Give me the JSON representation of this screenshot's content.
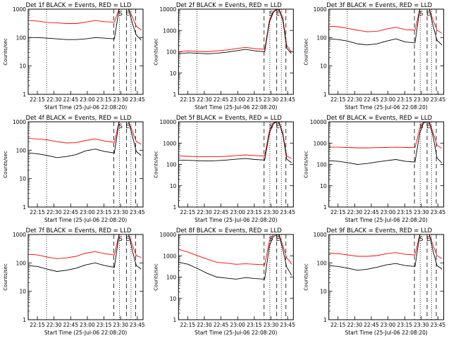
{
  "chart_data": [
    {
      "type": "line",
      "title": "Det 1f BLACK = Events, RED = LLD",
      "ylabel": "Counts/sec",
      "xlabel": "Start Time (25-Jul-06 22:08:20)",
      "x_ticks": [
        "22:15",
        "22:30",
        "22:45",
        "23:00",
        "23:15",
        "23:30",
        "23:45"
      ],
      "ylim": [
        1,
        1000
      ],
      "y_ticks": [
        "1",
        "10",
        "100",
        "1000"
      ],
      "scale": "log",
      "markers": [
        "S",
        "E"
      ],
      "series": [
        {
          "color": "#ff0000",
          "x": [
            0,
            10,
            20,
            30,
            40,
            50,
            60,
            70,
            80,
            90,
            95,
            99,
            103,
            105,
            109,
            113,
            117,
            118
          ],
          "values": [
            400,
            380,
            340,
            330,
            310,
            310,
            350,
            400,
            360,
            350,
            1000,
            1000,
            1000,
            1000,
            500,
            250,
            200,
            180
          ]
        },
        {
          "color": "#000000",
          "x": [
            0,
            10,
            20,
            30,
            40,
            50,
            60,
            70,
            80,
            90,
            95,
            99,
            103,
            105,
            109,
            113,
            117,
            118
          ],
          "values": [
            100,
            100,
            95,
            90,
            85,
            85,
            90,
            100,
            95,
            90,
            1000,
            1000,
            1000,
            1000,
            300,
            120,
            90,
            80
          ]
        }
      ]
    },
    {
      "type": "line",
      "title": "Det 2f BLACK = Events, RED = LLD",
      "ylabel": "Counts/sec",
      "xlabel": "Start Time (25-Jul-06 22:08:20)",
      "x_ticks": [
        "22:15",
        "22:30",
        "22:45",
        "23:00",
        "23:15",
        "23:30",
        "23:45"
      ],
      "ylim": [
        1,
        10000
      ],
      "y_ticks": [
        "1",
        "10",
        "100",
        "1000",
        "10000"
      ],
      "scale": "log",
      "markers": [
        "S",
        "E"
      ],
      "series": [
        {
          "color": "#ff0000",
          "x": [
            0,
            10,
            20,
            30,
            40,
            50,
            60,
            70,
            80,
            90,
            95,
            99,
            103,
            105,
            109,
            113,
            117,
            118
          ],
          "values": [
            100,
            110,
            105,
            100,
            110,
            120,
            140,
            160,
            140,
            130,
            3000,
            8000,
            10000,
            10000,
            4000,
            200,
            110,
            100
          ]
        },
        {
          "color": "#000000",
          "x": [
            0,
            10,
            20,
            30,
            40,
            50,
            60,
            70,
            80,
            90,
            95,
            99,
            103,
            105,
            109,
            113,
            117,
            118
          ],
          "values": [
            80,
            90,
            85,
            80,
            85,
            95,
            110,
            130,
            110,
            100,
            2500,
            7000,
            10000,
            9000,
            3000,
            150,
            90,
            85
          ]
        }
      ]
    },
    {
      "type": "line",
      "title": "Det 3f BLACK = Events, RED = LLD",
      "ylabel": "Counts/sec",
      "xlabel": "Start Time (25-Jul-06 22:08:20)",
      "x_ticks": [
        "22:15",
        "22:30",
        "22:45",
        "23:00",
        "23:15",
        "23:30",
        "23:45"
      ],
      "ylim": [
        1,
        1000
      ],
      "y_ticks": [
        "1",
        "10",
        "100",
        "1000"
      ],
      "scale": "log",
      "markers": [
        "S",
        "E"
      ],
      "series": [
        {
          "color": "#ff0000",
          "x": [
            0,
            10,
            20,
            30,
            40,
            50,
            60,
            70,
            80,
            90,
            95,
            99,
            103,
            105,
            109,
            113,
            117,
            118
          ],
          "values": [
            250,
            240,
            210,
            180,
            160,
            165,
            200,
            230,
            190,
            180,
            1000,
            1000,
            1000,
            1000,
            400,
            180,
            150,
            140
          ]
        },
        {
          "color": "#000000",
          "x": [
            0,
            10,
            20,
            30,
            40,
            50,
            60,
            70,
            80,
            90,
            95,
            99,
            103,
            105,
            109,
            113,
            117,
            118
          ],
          "values": [
            90,
            85,
            75,
            60,
            55,
            60,
            75,
            90,
            70,
            65,
            1000,
            1000,
            1000,
            1000,
            250,
            80,
            60,
            55
          ]
        }
      ]
    },
    {
      "type": "line",
      "title": "Det 4f BLACK = Events, RED = LLD",
      "ylabel": "Counts/sec",
      "xlabel": "Start Time (25-Jul-06 22:08:20)",
      "x_ticks": [
        "22:15",
        "22:30",
        "22:45",
        "23:00",
        "23:15",
        "23:30",
        "23:45"
      ],
      "ylim": [
        1,
        1000
      ],
      "y_ticks": [
        "1",
        "10",
        "100",
        "1000"
      ],
      "scale": "log",
      "markers": [
        "S",
        "E"
      ],
      "series": [
        {
          "color": "#ff0000",
          "x": [
            0,
            10,
            20,
            30,
            40,
            50,
            60,
            70,
            80,
            90,
            95,
            99,
            103,
            105,
            109,
            113,
            117,
            118
          ],
          "values": [
            260,
            250,
            230,
            200,
            180,
            185,
            220,
            250,
            210,
            190,
            1000,
            1000,
            1000,
            1000,
            450,
            200,
            170,
            160
          ]
        },
        {
          "color": "#000000",
          "x": [
            0,
            10,
            20,
            30,
            40,
            50,
            60,
            70,
            80,
            90,
            95,
            99,
            103,
            105,
            109,
            113,
            117,
            118
          ],
          "values": [
            80,
            75,
            65,
            55,
            60,
            70,
            95,
            110,
            90,
            80,
            1000,
            1000,
            1000,
            1000,
            300,
            90,
            70,
            65
          ]
        }
      ]
    },
    {
      "type": "line",
      "title": "Det 5f BLACK = Events, RED = LLD",
      "ylabel": "Counts/sec",
      "xlabel": "Start Time (25-Jul-06 22:08:20)",
      "x_ticks": [
        "22:15",
        "22:30",
        "22:45",
        "23:00",
        "23:15",
        "23:30",
        "23:45"
      ],
      "ylim": [
        1,
        10000
      ],
      "y_ticks": [
        "1",
        "10",
        "100",
        "1000",
        "10000"
      ],
      "scale": "log",
      "markers": [
        "S",
        "E"
      ],
      "series": [
        {
          "color": "#ff0000",
          "x": [
            0,
            10,
            20,
            30,
            40,
            50,
            60,
            70,
            80,
            90,
            95,
            99,
            103,
            105,
            109,
            113,
            117,
            118
          ],
          "values": [
            250,
            240,
            235,
            230,
            230,
            240,
            260,
            280,
            260,
            250,
            4000,
            9000,
            10000,
            10000,
            3000,
            250,
            200,
            190
          ]
        },
        {
          "color": "#000000",
          "x": [
            0,
            10,
            20,
            30,
            40,
            50,
            60,
            70,
            80,
            90,
            95,
            99,
            103,
            105,
            109,
            113,
            117,
            118
          ],
          "values": [
            160,
            155,
            150,
            145,
            150,
            160,
            175,
            190,
            170,
            160,
            3000,
            8000,
            10000,
            9000,
            2500,
            180,
            130,
            120
          ]
        }
      ]
    },
    {
      "type": "line",
      "title": "Det 6f BLACK = Events, RED = LLD",
      "ylabel": "Counts/sec",
      "xlabel": "Start Time (25-Jul-06 22:08:20)",
      "x_ticks": [
        "22:15",
        "22:30",
        "22:45",
        "23:00",
        "23:15",
        "23:30",
        "23:45"
      ],
      "ylim": [
        1,
        10000
      ],
      "y_ticks": [
        "1",
        "10",
        "100",
        "1000",
        "10000"
      ],
      "scale": "log",
      "markers": [
        "S",
        "E"
      ],
      "series": [
        {
          "color": "#ff0000",
          "x": [
            0,
            10,
            20,
            30,
            40,
            50,
            60,
            70,
            80,
            90,
            95,
            99,
            103,
            105,
            109,
            113,
            117,
            118
          ],
          "values": [
            650,
            640,
            620,
            600,
            600,
            610,
            620,
            640,
            620,
            610,
            5000,
            10000,
            10000,
            10000,
            3000,
            800,
            600,
            580
          ]
        },
        {
          "color": "#000000",
          "x": [
            0,
            10,
            20,
            30,
            40,
            50,
            60,
            70,
            80,
            90,
            95,
            99,
            103,
            105,
            109,
            113,
            117,
            118
          ],
          "values": [
            150,
            140,
            120,
            100,
            110,
            130,
            150,
            170,
            140,
            130,
            3000,
            9000,
            10000,
            9000,
            2000,
            200,
            130,
            120
          ]
        }
      ]
    },
    {
      "type": "line",
      "title": "Det 7f BLACK = Events, RED = LLD",
      "ylabel": "Counts/sec",
      "xlabel": "Start Time (25-Jul-06 22:08:20)",
      "x_ticks": [
        "22:15",
        "22:30",
        "22:45",
        "23:00",
        "23:15",
        "23:30",
        "23:45"
      ],
      "ylim": [
        1,
        1000
      ],
      "y_ticks": [
        "1",
        "10",
        "100",
        "1000"
      ],
      "scale": "log",
      "markers": [
        "S",
        "E"
      ],
      "series": [
        {
          "color": "#ff0000",
          "x": [
            0,
            10,
            20,
            30,
            40,
            50,
            60,
            70,
            80,
            90,
            95,
            99,
            103,
            105,
            109,
            113,
            117,
            118
          ],
          "values": [
            200,
            190,
            160,
            140,
            150,
            170,
            220,
            250,
            210,
            190,
            1000,
            1000,
            1000,
            1000,
            400,
            180,
            160,
            150
          ]
        },
        {
          "color": "#000000",
          "x": [
            0,
            10,
            20,
            30,
            40,
            50,
            60,
            70,
            80,
            90,
            95,
            99,
            103,
            105,
            109,
            113,
            117,
            118
          ],
          "values": [
            80,
            75,
            60,
            50,
            55,
            65,
            85,
            100,
            80,
            70,
            1000,
            1000,
            1000,
            1000,
            250,
            80,
            65,
            60
          ]
        }
      ]
    },
    {
      "type": "line",
      "title": "Det 8f BLACK = Events, RED = LLD",
      "ylabel": "Counts/sec",
      "xlabel": "Start Time (25-Jul-06 22:08:20)",
      "x_ticks": [
        "22:15",
        "22:30",
        "22:45",
        "23:00",
        "23:15",
        "23:30",
        "23:45"
      ],
      "ylim": [
        1,
        10000
      ],
      "y_ticks": [
        "1",
        "10",
        "100",
        "1000",
        "10000"
      ],
      "scale": "log",
      "markers": [
        "S",
        "E"
      ],
      "series": [
        {
          "color": "#ff0000",
          "x": [
            0,
            10,
            20,
            30,
            40,
            50,
            60,
            70,
            80,
            90,
            95,
            99,
            103,
            105,
            109,
            113,
            117,
            118
          ],
          "values": [
            2000,
            1500,
            1000,
            700,
            500,
            450,
            400,
            420,
            400,
            380,
            5000,
            10000,
            10000,
            10000,
            3000,
            800,
            500,
            400
          ]
        },
        {
          "color": "#000000",
          "x": [
            0,
            10,
            20,
            30,
            40,
            50,
            60,
            70,
            80,
            90,
            95,
            99,
            103,
            105,
            109,
            113,
            117,
            118
          ],
          "values": [
            500,
            400,
            250,
            150,
            100,
            90,
            80,
            95,
            85,
            80,
            3000,
            8000,
            10000,
            9000,
            2000,
            300,
            150,
            120
          ]
        }
      ]
    },
    {
      "type": "line",
      "title": "Det 9f BLACK = Events, RED = LLD",
      "ylabel": "Counts/sec",
      "xlabel": "Start Time (25-Jul-06 22:08:20)",
      "x_ticks": [
        "22:15",
        "22:30",
        "22:45",
        "23:00",
        "23:15",
        "23:30",
        "23:45"
      ],
      "ylim": [
        1,
        1000
      ],
      "y_ticks": [
        "1",
        "10",
        "100",
        "1000"
      ],
      "scale": "log",
      "markers": [
        "S",
        "E"
      ],
      "series": [
        {
          "color": "#ff0000",
          "x": [
            0,
            10,
            20,
            30,
            40,
            50,
            60,
            70,
            80,
            90,
            95,
            99,
            103,
            105,
            109,
            113,
            117,
            118
          ],
          "values": [
            220,
            210,
            190,
            170,
            170,
            180,
            210,
            230,
            200,
            190,
            1000,
            1000,
            1000,
            1000,
            400,
            180,
            150,
            140
          ]
        },
        {
          "color": "#000000",
          "x": [
            0,
            10,
            20,
            30,
            40,
            50,
            60,
            70,
            80,
            90,
            95,
            99,
            103,
            105,
            109,
            113,
            117,
            118
          ],
          "values": [
            80,
            75,
            65,
            55,
            60,
            70,
            85,
            95,
            80,
            75,
            1000,
            1000,
            1000,
            1000,
            250,
            80,
            65,
            60
          ]
        }
      ]
    }
  ]
}
